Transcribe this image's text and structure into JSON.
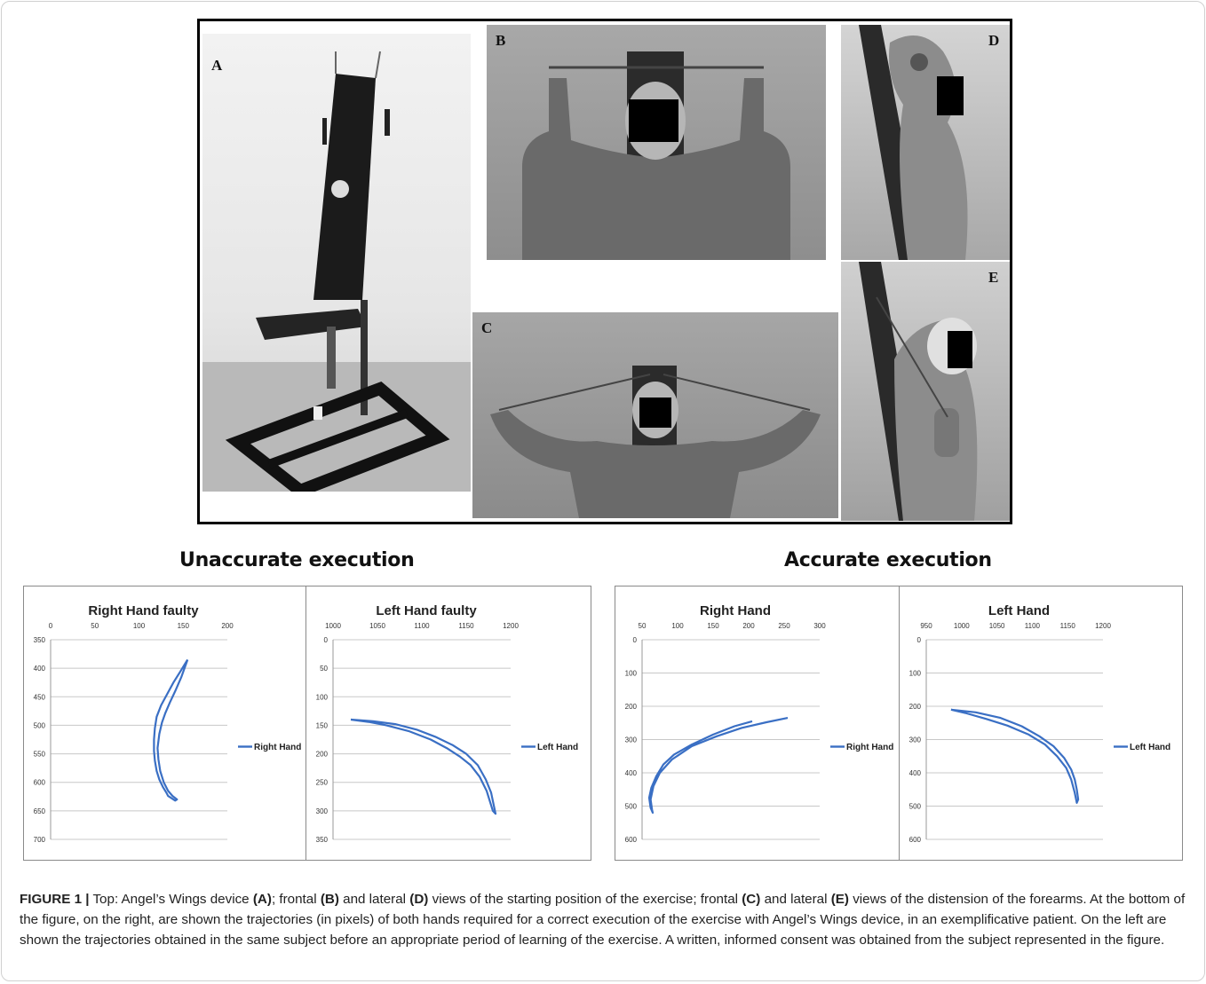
{
  "panels": {
    "a": "A",
    "b": "B",
    "c": "C",
    "d": "D",
    "e": "E"
  },
  "groups": {
    "left_title": "Unaccurate execution",
    "right_title": "Accurate execution"
  },
  "chart_data": [
    {
      "type": "line",
      "title": "Right Hand faulty",
      "series": [
        {
          "name": "Right Hand",
          "x": [
            155,
            147,
            139,
            132,
            125,
            120,
            118,
            117,
            117,
            118,
            120,
            123,
            127,
            131,
            133,
            137,
            141,
            143,
            138,
            133,
            128,
            124,
            122,
            121,
            123,
            126,
            130,
            135,
            141,
            148,
            155
          ],
          "y": [
            385,
            405,
            425,
            445,
            465,
            485,
            505,
            525,
            545,
            562,
            580,
            595,
            608,
            618,
            624,
            628,
            632,
            630,
            624,
            615,
            600,
            580,
            560,
            540,
            515,
            495,
            478,
            460,
            440,
            415,
            385
          ]
        }
      ],
      "xticks": [
        0,
        50,
        100,
        150,
        200
      ],
      "yticks": [
        350,
        400,
        450,
        500,
        550,
        600,
        650,
        700
      ],
      "xlim": [
        0,
        200
      ],
      "ylim": [
        350,
        700
      ],
      "y_inverted": true,
      "x_axis_position": "top",
      "legend": "right"
    },
    {
      "type": "line",
      "title": "Left Hand faulty",
      "series": [
        {
          "name": "Left Hand",
          "x": [
            1020,
            1045,
            1070,
            1095,
            1115,
            1135,
            1150,
            1163,
            1172,
            1178,
            1183,
            1180,
            1173,
            1165,
            1155,
            1143,
            1128,
            1110,
            1085,
            1060,
            1040,
            1020
          ],
          "y": [
            140,
            143,
            148,
            158,
            170,
            185,
            200,
            220,
            245,
            268,
            305,
            300,
            265,
            240,
            220,
            205,
            190,
            175,
            160,
            150,
            144,
            140
          ]
        }
      ],
      "xticks": [
        1000,
        1050,
        1100,
        1150,
        1200
      ],
      "yticks": [
        0,
        50,
        100,
        150,
        200,
        250,
        300,
        350
      ],
      "xlim": [
        1000,
        1200
      ],
      "ylim": [
        0,
        350
      ],
      "y_inverted": true,
      "x_axis_position": "top",
      "legend": "right"
    },
    {
      "type": "line",
      "title": "Right Hand",
      "series": [
        {
          "name": "Right Hand",
          "x": [
            205,
            180,
            150,
            120,
            95,
            80,
            70,
            63,
            60,
            62,
            65,
            64,
            62,
            66,
            75,
            92,
            120,
            155,
            190,
            225,
            255
          ],
          "y": [
            245,
            260,
            285,
            315,
            345,
            375,
            410,
            445,
            475,
            505,
            520,
            510,
            480,
            440,
            400,
            360,
            320,
            290,
            265,
            248,
            235
          ]
        }
      ],
      "xticks": [
        50,
        100,
        150,
        200,
        250,
        300
      ],
      "yticks": [
        0,
        100,
        200,
        300,
        400,
        500,
        600
      ],
      "xlim": [
        50,
        300
      ],
      "ylim": [
        0,
        600
      ],
      "y_inverted": true,
      "x_axis_position": "top",
      "legend": "right"
    },
    {
      "type": "line",
      "title": "Left Hand",
      "series": [
        {
          "name": "Left Hand",
          "x": [
            985,
            1020,
            1055,
            1085,
            1110,
            1130,
            1145,
            1155,
            1160,
            1163,
            1165,
            1163,
            1160,
            1155,
            1148,
            1135,
            1118,
            1095,
            1065,
            1035,
            1005,
            985
          ],
          "y": [
            210,
            218,
            235,
            260,
            290,
            320,
            355,
            390,
            420,
            450,
            480,
            490,
            460,
            420,
            385,
            350,
            315,
            285,
            258,
            238,
            220,
            210
          ]
        }
      ],
      "xticks": [
        950,
        1000,
        1050,
        1100,
        1150,
        1200
      ],
      "yticks": [
        0,
        100,
        200,
        300,
        400,
        500,
        600
      ],
      "xlim": [
        950,
        1200
      ],
      "ylim": [
        0,
        600
      ],
      "y_inverted": true,
      "x_axis_position": "top",
      "legend": "right"
    }
  ],
  "caption": {
    "label": "FIGURE 1 |",
    "t1": " Top: Angel’s Wings device ",
    "a": "(A)",
    "t2": "; frontal ",
    "b": "(B)",
    "t3": " and lateral ",
    "d": "(D)",
    "t4": " views of the starting position of the exercise; frontal ",
    "c": "(C)",
    "t5": " and lateral ",
    "e": "(E)",
    "t6": " views of the distension of the forearms. At the bottom of the figure, on the right, are shown the trajectories (in pixels) of both hands required for a correct execution of the exercise with Angel’s Wings device, in an exemplificative patient. On the left are shown the trajectories obtained in the same subject before an appropriate period of learning of the exercise. A written, informed consent was obtained from the subject represented in the figure."
  },
  "colors": {
    "series_line": "#3a6fc4",
    "gridline": "#c8c8c8",
    "axis_text": "#333333",
    "photo_bg": "#9a9a9a"
  }
}
